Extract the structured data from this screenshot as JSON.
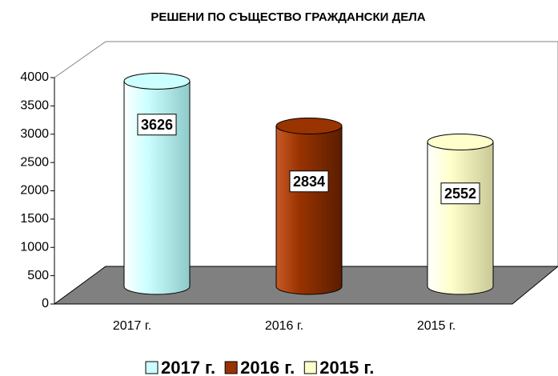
{
  "chart_data": {
    "type": "bar",
    "title": "РЕШЕНИ ПО СЪЩЕСТВО  ГРАЖДАНСКИ ДЕЛА",
    "categories": [
      "2017 г.",
      "2016 г.",
      "2015 г."
    ],
    "values": [
      3626,
      2834,
      2552
    ],
    "colors": [
      "#ccffff",
      "#993300",
      "#ffffcc"
    ],
    "ylim": [
      0,
      4000
    ],
    "yticks": [
      0,
      500,
      1000,
      1500,
      2000,
      2500,
      3000,
      3500,
      4000
    ],
    "legend": "bottom"
  }
}
